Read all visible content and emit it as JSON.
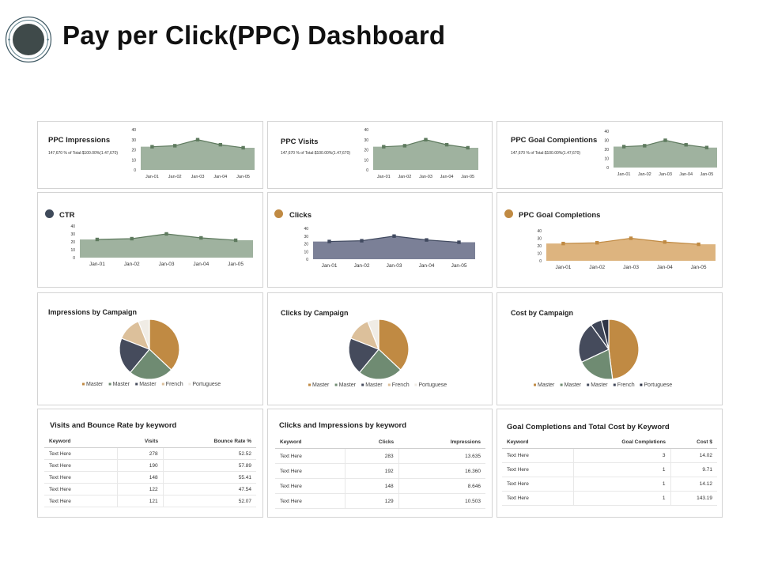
{
  "header": {
    "title": "Pay per Click(PPC) Dashboard"
  },
  "colors": {
    "green": "#9fb29f",
    "green_line": "#5e7a5e",
    "navy": "#7b8097",
    "navy_line": "#414a60",
    "gold": "#ddb47f",
    "gold_line": "#c08a43",
    "dot_dark": "#3f4a5a",
    "dot_gold": "#c08a43"
  },
  "months": [
    "Jan-01",
    "Jan-02",
    "Jan-03",
    "Jan-04",
    "Jan-05"
  ],
  "spark": {
    "impressions": {
      "title": "PPC Impressions",
      "subtitle": "147,670 % of Total:$100.00%(1.47,670)"
    },
    "visits": {
      "title": "PPC Visits",
      "subtitle": "147,670 % of Total:$100.00%(1.47,670)"
    },
    "goal": {
      "title": "PPC Goal Compientions",
      "subtitle": "147,670 % of Total:$100.00%(1.47,670)"
    }
  },
  "metric": {
    "ctr": {
      "title": "CTR"
    },
    "clicks": {
      "title": "Clicks"
    },
    "goal": {
      "title": "PPC Goal Completions"
    }
  },
  "pies": {
    "impressions": {
      "title": "Impressions by Campaign"
    },
    "clicks": {
      "title": "Clicks by Campaign"
    },
    "cost": {
      "title": "Cost by Campaign"
    }
  },
  "tables": {
    "visits": {
      "title": "Visits and Bounce Rate by keyword",
      "headers": [
        "Keyword",
        "Visits",
        "Bounce Rate %"
      ],
      "rows": [
        [
          "Text Here",
          "278",
          "52.52"
        ],
        [
          "Text Here",
          "190",
          "57.89"
        ],
        [
          "Text Here",
          "148",
          "55.41"
        ],
        [
          "Text Here",
          "122",
          "47.54"
        ],
        [
          "Text Here",
          "121",
          "52.07"
        ]
      ]
    },
    "clicks": {
      "title": "Clicks and Impressions by keyword",
      "headers": [
        "Keyword",
        "Clicks",
        "Impressions"
      ],
      "rows": [
        [
          "Text Here",
          "283",
          "13.635"
        ],
        [
          "Text Here",
          "192",
          "16.360"
        ],
        [
          "Text Here",
          "148",
          "8.646"
        ],
        [
          "Text Here",
          "129",
          "10.503"
        ]
      ]
    },
    "goal": {
      "title": "Goal Completions and Total Cost by Keyword",
      "headers": [
        "Keyword",
        "Goal Completions",
        "Cost $"
      ],
      "rows": [
        [
          "Text Here",
          "3",
          "14.02"
        ],
        [
          "Text Here",
          "1",
          "9.71"
        ],
        [
          "Text Here",
          "1",
          "14.12"
        ],
        [
          "Text Here",
          "1",
          "143.19"
        ]
      ]
    }
  },
  "chart_data": [
    {
      "type": "area",
      "title": "PPC Impressions",
      "categories": [
        "Jan-01",
        "Jan-02",
        "Jan-03",
        "Jan-04",
        "Jan-05"
      ],
      "values": [
        23,
        24,
        30,
        25,
        22
      ],
      "yticks": [
        "0",
        "10",
        "20",
        "30",
        "40"
      ],
      "ylim": [
        0,
        40
      ]
    },
    {
      "type": "area",
      "title": "PPC Visits",
      "categories": [
        "Jan-01",
        "Jan-02",
        "Jan-03",
        "Jan-04",
        "Jan-05"
      ],
      "values": [
        23,
        24,
        30,
        25,
        22
      ],
      "yticks": [
        "0",
        "10",
        "20",
        "30",
        "40"
      ],
      "ylim": [
        0,
        40
      ]
    },
    {
      "type": "area",
      "title": "PPC Goal Compientions",
      "categories": [
        "Jan-01",
        "Jan-02",
        "Jan-03",
        "Jan-04",
        "Jan-05"
      ],
      "values": [
        23,
        24,
        30,
        25,
        22
      ],
      "yticks": [
        "0",
        "10",
        "20",
        "30",
        "40"
      ],
      "ylim": [
        0,
        40
      ]
    },
    {
      "type": "area",
      "title": "CTR",
      "categories": [
        "Jan-01",
        "Jan-02",
        "Jan-03",
        "Jan-04",
        "Jan-05"
      ],
      "values": [
        23,
        24,
        30,
        25,
        22
      ],
      "yticks": [
        "0",
        "10",
        "20",
        "30",
        "40"
      ],
      "ylim": [
        0,
        40
      ]
    },
    {
      "type": "area",
      "title": "Clicks",
      "categories": [
        "Jan-01",
        "Jan-02",
        "Jan-03",
        "Jan-04",
        "Jan-05"
      ],
      "values": [
        23,
        24,
        30,
        25,
        22
      ],
      "yticks": [
        "0",
        "10",
        "20",
        "30",
        "40"
      ],
      "ylim": [
        0,
        40
      ]
    },
    {
      "type": "area",
      "title": "PPC Goal Completions",
      "categories": [
        "Jan-01",
        "Jan-02",
        "Jan-03",
        "Jan-04",
        "Jan-05"
      ],
      "values": [
        23,
        24,
        30,
        25,
        22
      ],
      "yticks": [
        "0",
        "10",
        "20",
        "30",
        "40"
      ],
      "ylim": [
        0,
        40
      ]
    },
    {
      "type": "pie",
      "title": "Impressions by Campaign",
      "legend": [
        "Master",
        "Master",
        "Master",
        "French",
        "Portuguese"
      ],
      "values": [
        37,
        24,
        20,
        13,
        6
      ],
      "slice_colors": [
        "#c08a43",
        "#6f8b72",
        "#454b5c",
        "#dcc09b",
        "#f0ece5"
      ]
    },
    {
      "type": "pie",
      "title": "Clicks by Campaign",
      "legend": [
        "Master",
        "Master",
        "Master",
        "French",
        "Portuguese"
      ],
      "values": [
        37,
        24,
        20,
        13,
        6
      ],
      "slice_colors": [
        "#c08a43",
        "#6f8b72",
        "#454b5c",
        "#dcc09b",
        "#f0ece5"
      ]
    },
    {
      "type": "pie",
      "title": "Cost by Campaign",
      "legend": [
        "Master",
        "Master",
        "Master",
        "French",
        "Portuguese"
      ],
      "values": [
        48,
        20,
        22,
        6,
        4
      ],
      "slice_colors": [
        "#c08a43",
        "#6f8b72",
        "#454b5c",
        "#3f4658",
        "#2e3446"
      ]
    }
  ]
}
